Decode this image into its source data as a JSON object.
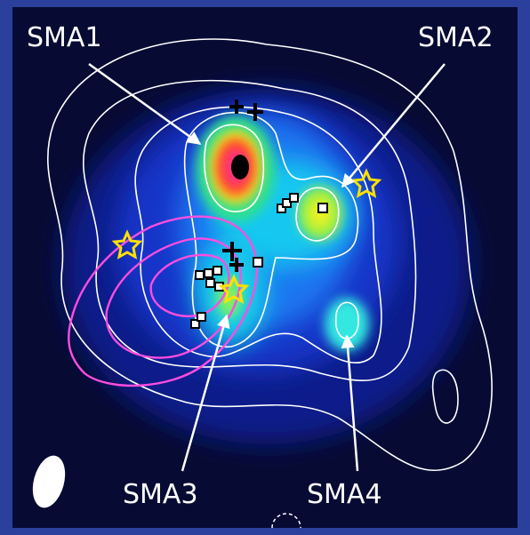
{
  "labels": [
    "SMA1",
    "SMA2",
    "SMA3",
    "SMA4"
  ]
}
